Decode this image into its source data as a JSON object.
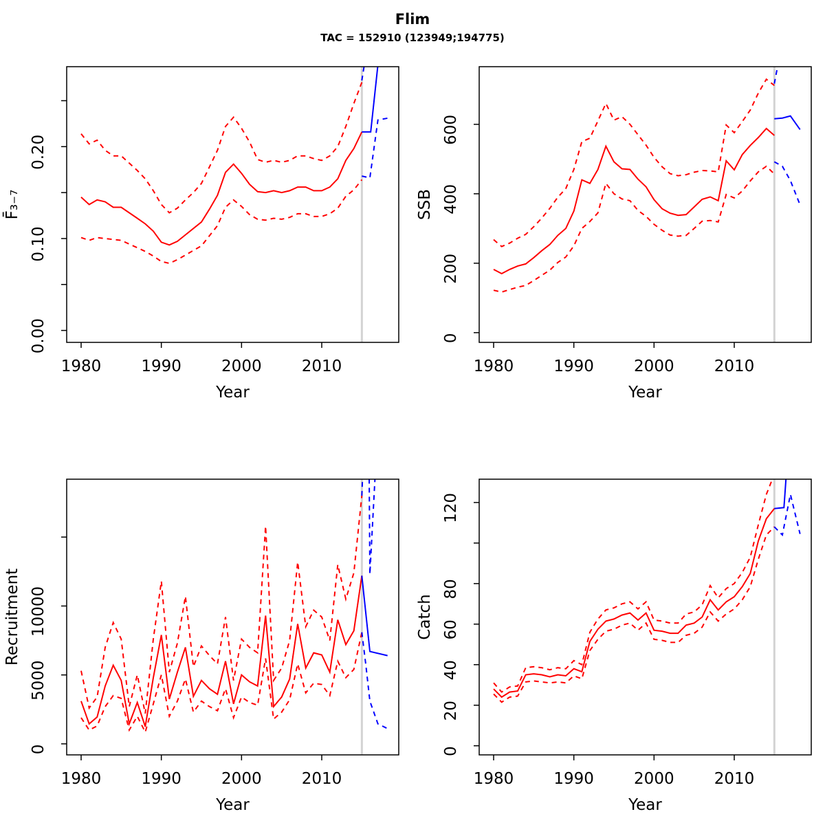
{
  "title": "Flim",
  "subtitle": "TAC = 152910 (123949;194775)",
  "colors": {
    "history": "#ff0000",
    "forecast": "#0000ff",
    "assessment_year_line": "#d3d3d3",
    "axis": "#000000",
    "background": "#ffffff"
  },
  "now_year": 2015,
  "years_history": [
    1980,
    1981,
    1982,
    1983,
    1984,
    1985,
    1986,
    1987,
    1988,
    1989,
    1990,
    1991,
    1992,
    1993,
    1994,
    1995,
    1996,
    1997,
    1998,
    1999,
    2000,
    2001,
    2002,
    2003,
    2004,
    2005,
    2006,
    2007,
    2008,
    2009,
    2010,
    2011,
    2012,
    2013,
    2014,
    2015
  ],
  "chart_data": [
    {
      "type": "line",
      "name": "fbar",
      "ylabel": "F̄₃₋₇",
      "xlabel": "Year",
      "xlim": [
        1978.2,
        2019.6
      ],
      "ylim": [
        -0.013,
        0.287
      ],
      "xticks": [
        1980,
        1990,
        2000,
        2010
      ],
      "yticks": {
        "values": [
          0,
          0.1,
          0.2
        ],
        "labels": [
          "0.00",
          "0.10",
          "0.20"
        ],
        "minor": [
          0.05,
          0.15,
          0.25
        ]
      },
      "history": {
        "median": [
          0.145,
          0.137,
          0.142,
          0.14,
          0.134,
          0.134,
          0.128,
          0.122,
          0.116,
          0.108,
          0.096,
          0.093,
          0.097,
          0.104,
          0.111,
          0.118,
          0.132,
          0.147,
          0.172,
          0.181,
          0.171,
          0.159,
          0.151,
          0.15,
          0.152,
          0.15,
          0.152,
          0.156,
          0.156,
          0.152,
          0.152,
          0.156,
          0.165,
          0.185,
          0.198,
          0.216
        ],
        "hi": [
          0.214,
          0.203,
          0.207,
          0.196,
          0.19,
          0.19,
          0.182,
          0.174,
          0.165,
          0.152,
          0.137,
          0.128,
          0.133,
          0.142,
          0.15,
          0.16,
          0.178,
          0.196,
          0.222,
          0.232,
          0.22,
          0.205,
          0.186,
          0.183,
          0.185,
          0.183,
          0.185,
          0.19,
          0.19,
          0.187,
          0.185,
          0.19,
          0.2,
          0.222,
          0.247,
          0.27
        ],
        "lo": [
          0.101,
          0.098,
          0.101,
          0.1,
          0.099,
          0.098,
          0.094,
          0.09,
          0.086,
          0.081,
          0.075,
          0.073,
          0.077,
          0.082,
          0.087,
          0.092,
          0.103,
          0.114,
          0.134,
          0.142,
          0.135,
          0.126,
          0.121,
          0.12,
          0.122,
          0.121,
          0.123,
          0.127,
          0.127,
          0.124,
          0.124,
          0.127,
          0.133,
          0.146,
          0.153,
          0.164
        ]
      },
      "forecast": {
        "median": [
          [
            2015,
            0.216
          ],
          [
            2016.1,
            0.216
          ],
          [
            2017.2,
            0.305
          ]
        ],
        "lo": [
          [
            2015,
            0.168
          ],
          [
            2016,
            0.166
          ],
          [
            2017,
            0.229
          ],
          [
            2018.2,
            0.231
          ]
        ],
        "hi": [
          [
            2015,
            0.272
          ],
          [
            2015.7,
            0.31
          ]
        ]
      }
    },
    {
      "type": "line",
      "name": "ssb",
      "ylabel": "SSB",
      "xlabel": "Year",
      "xlim": [
        1978.2,
        2019.6
      ],
      "ylim": [
        -28,
        766
      ],
      "xticks": [
        1980,
        1990,
        2000,
        2010
      ],
      "yticks": {
        "values": [
          0,
          200,
          400,
          600
        ],
        "labels": [
          "0",
          "200",
          "400",
          "600"
        ],
        "minor": []
      },
      "history": {
        "median": [
          182,
          170,
          182,
          192,
          198,
          216,
          236,
          254,
          280,
          300,
          350,
          440,
          430,
          470,
          537,
          492,
          472,
          470,
          442,
          420,
          383,
          357,
          344,
          338,
          340,
          362,
          384,
          391,
          380,
          495,
          469,
          513,
          539,
          562,
          588,
          568
        ],
        "hi": [
          268,
          248,
          258,
          272,
          283,
          305,
          330,
          358,
          390,
          415,
          470,
          550,
          560,
          610,
          660,
          612,
          622,
          600,
          570,
          540,
          505,
          478,
          458,
          452,
          455,
          462,
          467,
          466,
          463,
          598,
          576,
          608,
          641,
          690,
          730,
          712
        ],
        "lo": [
          122,
          117,
          124,
          131,
          136,
          150,
          165,
          180,
          202,
          218,
          250,
          300,
          320,
          345,
          430,
          400,
          385,
          380,
          352,
          335,
          312,
          295,
          281,
          278,
          280,
          300,
          321,
          323,
          319,
          398,
          388,
          408,
          437,
          463,
          479,
          457
        ]
      },
      "forecast": {
        "median": [
          [
            2015,
            616
          ],
          [
            2016,
            618
          ],
          [
            2017,
            624
          ],
          [
            2018.2,
            585
          ]
        ],
        "lo": [
          [
            2015,
            492
          ],
          [
            2016,
            479
          ],
          [
            2017,
            438
          ],
          [
            2018.2,
            368
          ]
        ],
        "hi": [
          [
            2015,
            717
          ],
          [
            2015.6,
            790
          ]
        ]
      }
    },
    {
      "type": "line",
      "name": "recruitment",
      "ylabel": "Recruitment",
      "xlabel": "Year",
      "xlim": [
        1978.2,
        2019.6
      ],
      "ylim": [
        -800,
        19200
      ],
      "xticks": [
        1980,
        1990,
        2000,
        2010
      ],
      "yticks": {
        "values": [
          0,
          5000,
          10000
        ],
        "labels": [
          "0",
          "5000",
          "10000"
        ],
        "minor": [
          15000
        ]
      },
      "history": {
        "median": [
          3100,
          1450,
          1950,
          4200,
          5700,
          4600,
          1450,
          3000,
          1250,
          4800,
          7900,
          3250,
          5200,
          7000,
          3450,
          4600,
          4000,
          3600,
          6000,
          2900,
          5000,
          4500,
          4200,
          9300,
          2700,
          3400,
          4700,
          8700,
          5500,
          6600,
          6450,
          5200,
          9000,
          7200,
          8200,
          12200
        ],
        "hi": [
          5300,
          2600,
          3400,
          7000,
          8800,
          7600,
          2700,
          5000,
          2200,
          7600,
          11800,
          5200,
          7300,
          10700,
          5600,
          7100,
          6400,
          5800,
          9200,
          4600,
          7600,
          7000,
          6600,
          15800,
          4600,
          5500,
          7500,
          13200,
          8500,
          9700,
          9200,
          7500,
          13000,
          10500,
          12400,
          18000
        ],
        "lo": [
          1900,
          1000,
          1300,
          2700,
          3500,
          3300,
          1000,
          2000,
          850,
          2900,
          5000,
          2000,
          3100,
          4700,
          2300,
          3100,
          2700,
          2400,
          4000,
          1900,
          3400,
          3000,
          2800,
          6200,
          1800,
          2300,
          3200,
          5800,
          3700,
          4400,
          4300,
          3500,
          6000,
          4800,
          5400,
          8100
        ]
      },
      "forecast": {
        "median": [
          [
            2015,
            12200
          ],
          [
            2016,
            6700
          ],
          [
            2018.2,
            6400
          ]
        ],
        "lo": [
          [
            2015,
            8100
          ],
          [
            2015.5,
            5700
          ],
          [
            2016,
            3100
          ],
          [
            2017,
            1450
          ],
          [
            2018.4,
            1050
          ]
        ],
        "hi": [
          [
            2015,
            18000
          ],
          [
            2015.2,
            21000
          ],
          [
            2015.9,
            21000
          ],
          [
            2016,
            12300
          ],
          [
            2016.8,
            21000
          ]
        ]
      }
    },
    {
      "type": "line",
      "name": "catch",
      "ylabel": "Catch",
      "xlabel": "Year",
      "xlim": [
        1978.2,
        2019.6
      ],
      "ylim": [
        -4.5,
        131.5
      ],
      "xticks": [
        1980,
        1990,
        2000,
        2010
      ],
      "yticks": {
        "values": [
          0,
          20,
          40,
          60,
          80,
          120
        ],
        "labels": [
          "0",
          "20",
          "40",
          "60",
          "80",
          "120"
        ],
        "minor": [
          100
        ]
      },
      "history": {
        "median": [
          28,
          24,
          26.5,
          27,
          35,
          35.5,
          35,
          34,
          35,
          34.5,
          38,
          36.5,
          51.5,
          57.5,
          61.5,
          62.5,
          64.5,
          65.5,
          62,
          65.5,
          57,
          56.5,
          55.5,
          55.5,
          59.5,
          60.5,
          63.5,
          72,
          67,
          71,
          73.5,
          78.5,
          85,
          101,
          112,
          117
        ],
        "hi": [
          31,
          26.5,
          29,
          29.5,
          38.5,
          39,
          38.5,
          37.5,
          38.5,
          38,
          42,
          40,
          56,
          62.5,
          67,
          68,
          70,
          71,
          67.5,
          71,
          62,
          61.5,
          60.5,
          60.5,
          65,
          66,
          69.5,
          79,
          73,
          77.5,
          80,
          85.5,
          93,
          109,
          124,
          134
        ],
        "lo": [
          25.5,
          21.5,
          24,
          24.5,
          31.5,
          32,
          31.5,
          31,
          31.5,
          31,
          34.5,
          33,
          47,
          52.5,
          56.5,
          57.5,
          59.5,
          60.5,
          57,
          60.5,
          52.5,
          52,
          51,
          51,
          54.5,
          55.5,
          58.5,
          66,
          61.5,
          65,
          67.5,
          72,
          78.5,
          92,
          104,
          108
        ]
      },
      "forecast": {
        "median": [
          [
            2015,
            117
          ],
          [
            2016.2,
            117.5
          ],
          [
            2016.6,
            140
          ]
        ],
        "lo": [
          [
            2015,
            108
          ],
          [
            2016,
            104
          ],
          [
            2017,
            124
          ],
          [
            2018.2,
            104.5
          ]
        ],
        "hi": [
          [
            2015,
            134
          ],
          [
            2015.4,
            148
          ]
        ]
      }
    }
  ]
}
